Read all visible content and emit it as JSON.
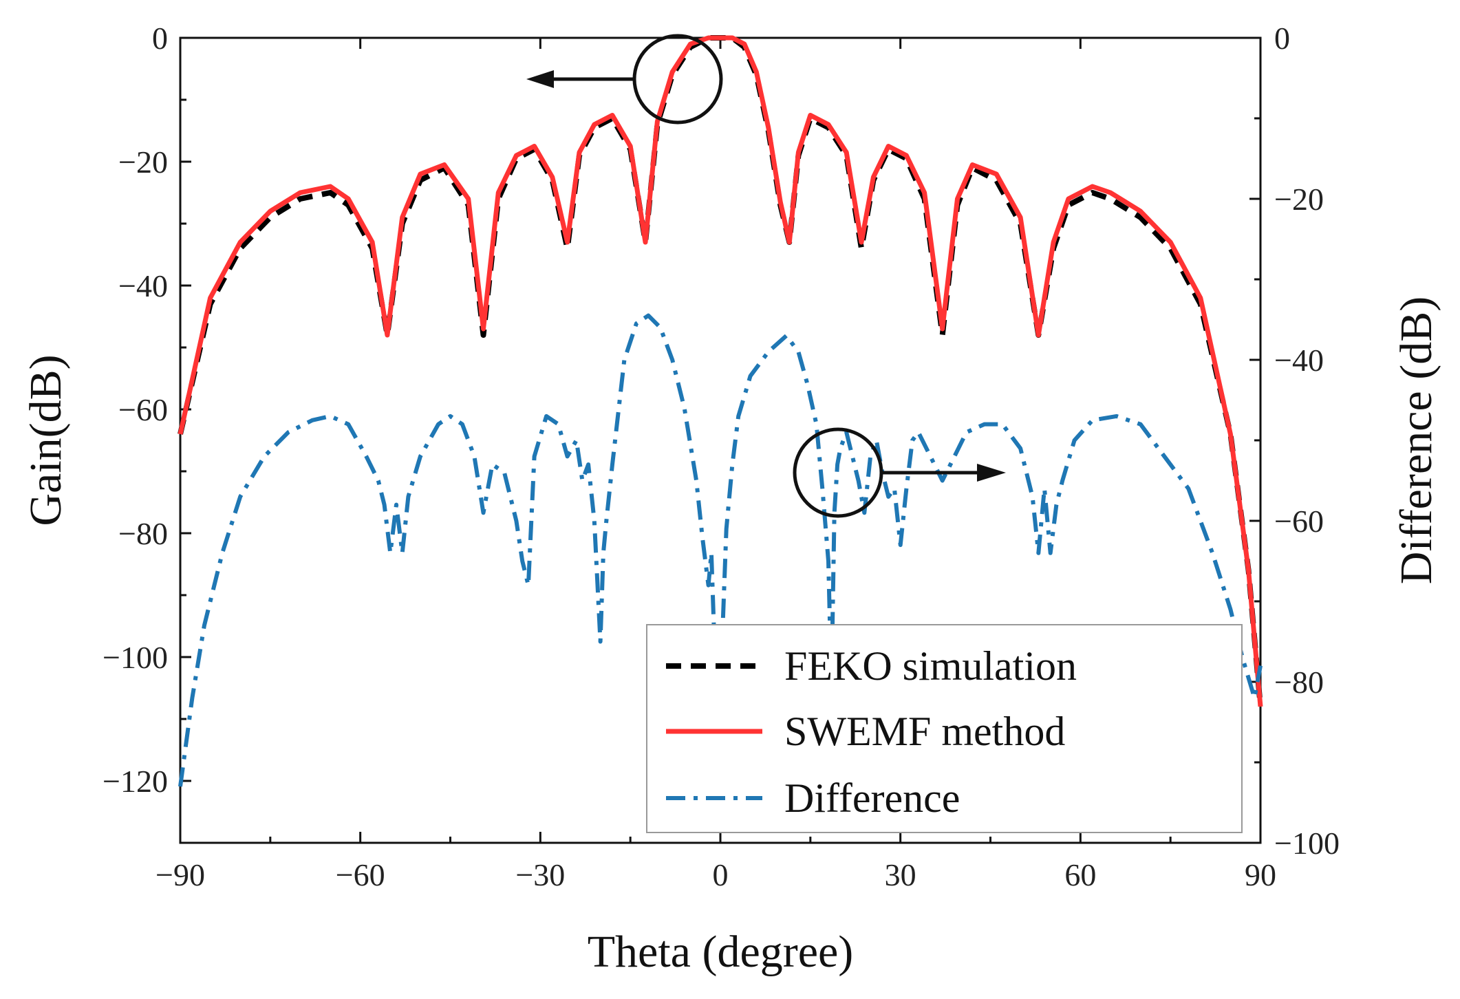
{
  "chart_data": {
    "type": "line",
    "title": "",
    "xlabel": "Theta (degree)",
    "ylabel_left": "Gain(dB)",
    "ylabel_right": "Difference (dB)",
    "xlim": [
      -90,
      90
    ],
    "ylim_left": [
      -130,
      0
    ],
    "ylim_right": [
      -100,
      0
    ],
    "x_ticks": [
      -90,
      -60,
      -30,
      0,
      30,
      60,
      90
    ],
    "x_tick_labels": [
      "−90",
      "−60",
      "−30",
      "0",
      "30",
      "60",
      "90"
    ],
    "y_left_ticks": [
      0,
      -20,
      -40,
      -60,
      -80,
      -100,
      -120
    ],
    "y_left_tick_labels": [
      "0",
      "−20",
      "−40",
      "−60",
      "−80",
      "−100",
      "−120"
    ],
    "y_right_ticks": [
      0,
      -20,
      -40,
      -60,
      -80,
      -100
    ],
    "y_right_tick_labels": [
      "0",
      "−20",
      "−40",
      "−60",
      "−80",
      "−100"
    ],
    "grid": false,
    "legend_position": "bottom-right",
    "series": [
      {
        "name": "FEKO simulation",
        "axis": "left",
        "color": "#000000",
        "style": "dashed",
        "x": [
          -90,
          -85,
          -80,
          -75,
          -70,
          -65,
          -62,
          -58,
          -55.5,
          -53,
          -50,
          -46,
          -42,
          -39.5,
          -37,
          -34,
          -31,
          -28,
          -25.5,
          -23.5,
          -21,
          -18,
          -15,
          -12.5,
          -10.5,
          -8,
          -5,
          -2,
          0,
          2,
          4,
          6,
          8,
          10,
          11.5,
          13,
          15,
          18,
          21,
          23.5,
          25.5,
          28,
          31,
          34,
          37,
          39.5,
          42,
          46,
          50,
          53,
          55.5,
          58,
          62,
          65,
          70,
          75,
          80,
          85,
          88,
          90
        ],
        "values": [
          -64,
          -43,
          -34,
          -29,
          -26,
          -25,
          -27,
          -34,
          -48,
          -30,
          -23,
          -21,
          -27,
          -48,
          -26,
          -19.5,
          -18,
          -23,
          -34,
          -19,
          -14.5,
          -13,
          -18,
          -33,
          -14,
          -6,
          -1.5,
          0,
          0,
          0,
          -1.5,
          -6,
          -15,
          -27,
          -33,
          -19,
          -13,
          -14.5,
          -19,
          -34,
          -23,
          -18,
          -19.5,
          -26,
          -48,
          -27,
          -21,
          -23,
          -30,
          -48,
          -34,
          -27,
          -25,
          -26,
          -29,
          -34,
          -43,
          -64,
          -86,
          -108
        ]
      },
      {
        "name": "SWEMF method",
        "axis": "left",
        "color": "#ff3333",
        "style": "solid",
        "x": [
          -90,
          -85,
          -80,
          -75,
          -70,
          -65,
          -62,
          -58,
          -55.5,
          -53,
          -50,
          -46,
          -42,
          -39.5,
          -37,
          -34,
          -31,
          -28,
          -25.5,
          -23.5,
          -21,
          -18,
          -15,
          -12.5,
          -10.5,
          -8,
          -5,
          -2,
          0,
          2,
          4,
          6,
          8,
          10,
          11.5,
          13,
          15,
          18,
          21,
          23.5,
          25.5,
          28,
          31,
          34,
          37,
          39.5,
          42,
          46,
          50,
          53,
          55.5,
          58,
          62,
          65,
          70,
          75,
          80,
          85,
          88,
          90
        ],
        "values": [
          -64,
          -42,
          -33,
          -28,
          -25,
          -24,
          -26,
          -33,
          -48,
          -29,
          -22,
          -20.5,
          -26,
          -47,
          -25,
          -19,
          -17.5,
          -22.5,
          -33,
          -18.5,
          -14,
          -12.5,
          -17.5,
          -33,
          -13.5,
          -5.5,
          -1,
          0,
          0,
          0,
          -1,
          -5.5,
          -14.5,
          -26.5,
          -33,
          -18.5,
          -12.5,
          -14,
          -18.5,
          -33,
          -22.5,
          -17.5,
          -19,
          -25,
          -47,
          -26,
          -20.5,
          -22,
          -29,
          -48,
          -33,
          -26,
          -24,
          -25,
          -28,
          -33,
          -42,
          -64,
          -86,
          -108
        ]
      },
      {
        "name": "Difference",
        "axis": "right",
        "color": "#1f77b4",
        "style": "dashdot",
        "x": [
          -90,
          -88,
          -86,
          -83,
          -80,
          -76,
          -72,
          -68,
          -65,
          -62,
          -59,
          -57,
          -56,
          -55,
          -54,
          -53,
          -52,
          -50,
          -47,
          -45,
          -43,
          -41,
          -39.5,
          -38,
          -36,
          -34,
          -33,
          -32,
          -31,
          -29,
          -27,
          -25.5,
          -24,
          -23,
          -22,
          -21,
          -20,
          -19.5,
          -19,
          -18,
          -16,
          -14,
          -12,
          -10,
          -8,
          -6,
          -4,
          -3,
          -2,
          -1.5,
          -1,
          -0.5,
          0,
          1,
          2,
          3,
          5,
          8,
          11,
          13,
          14.5,
          16,
          17,
          18,
          18.5,
          19,
          19.5,
          20,
          21,
          22,
          23,
          24,
          25,
          26,
          27,
          28,
          29,
          30,
          31,
          32,
          33,
          35,
          37,
          39,
          41,
          44,
          47,
          50,
          52,
          53,
          54,
          55,
          56,
          57,
          59,
          62,
          66,
          70,
          74,
          78,
          82,
          85,
          87,
          89,
          90
        ],
        "values": [
          -93,
          -82,
          -73,
          -64,
          -57,
          -52,
          -49,
          -47.5,
          -47,
          -48,
          -52,
          -55,
          -58,
          -64,
          -58,
          -64,
          -57,
          -52,
          -48,
          -47,
          -48,
          -52,
          -59,
          -53,
          -54,
          -60,
          -65,
          -68,
          -52,
          -47,
          -48,
          -52,
          -50,
          -55,
          -53,
          -60,
          -75,
          -64,
          -60,
          -53,
          -40,
          -35.5,
          -34.5,
          -36,
          -40,
          -46,
          -55,
          -62,
          -68,
          -64,
          -75,
          -73,
          -81,
          -61,
          -53,
          -47,
          -42,
          -39,
          -37,
          -39,
          -43,
          -48,
          -56,
          -65,
          -81,
          -59,
          -53,
          -51,
          -49,
          -52,
          -55,
          -59,
          -52,
          -50,
          -54,
          -57,
          -56,
          -63,
          -56,
          -50,
          -49,
          -52,
          -55,
          -52,
          -49,
          -48,
          -48,
          -51,
          -57,
          -64,
          -56,
          -64,
          -58,
          -55,
          -50,
          -47.5,
          -47,
          -48,
          -52,
          -56,
          -64,
          -71,
          -77,
          -82,
          -78
        ]
      }
    ],
    "annotations": [
      "circle with left arrow on gain curve",
      "circle with right arrow on difference curve"
    ]
  }
}
